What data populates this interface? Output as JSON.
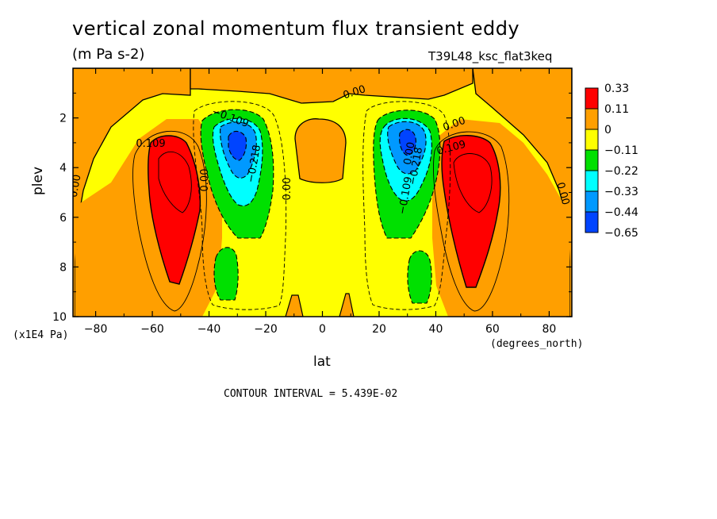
{
  "chart_data": {
    "type": "heatmap",
    "title": "vertical zonal momentum flux transient eddy",
    "subtitle": "(m Pa s-2)",
    "run_label": "T39L48_ksc_flat3keq",
    "xlabel": "lat",
    "ylabel": "plev",
    "x_unit_label": "(degrees_north)",
    "y_unit_label": "(x1E4 Pa)",
    "contour_interval_text": "CONTOUR INTERVAL = 5.439E-02",
    "xlim": [
      -88,
      88
    ],
    "ylim": [
      0,
      10
    ],
    "y_inverted": true,
    "x_ticks": [
      -80,
      -60,
      -40,
      -20,
      0,
      20,
      40,
      60,
      80
    ],
    "x_tick_labels": [
      "−80",
      "−60",
      "−40",
      "−20",
      "0",
      "20",
      "40",
      "60",
      "80"
    ],
    "y_ticks": [
      2,
      4,
      6,
      8,
      10
    ],
    "y_tick_labels": [
      "2",
      "4",
      "6",
      "8",
      "10"
    ],
    "legend": {
      "placement": "right",
      "levels": [
        "0.33",
        "0.11",
        "0",
        "−0.11",
        "−0.22",
        "−0.33",
        "−0.44",
        "−0.65"
      ],
      "colors": [
        "#ff0000",
        "#ff9f00",
        "#ffff00",
        "#00e000",
        "#00ffff",
        "#0099ff",
        "#0044ff"
      ]
    },
    "contour_labels": [
      "0.00",
      "0.00",
      "0.00",
      "0.00",
      "0.00",
      "0.00",
      "0.00",
      "0.109",
      "0.109",
      "−0.109",
      "−0.109",
      "−0.218",
      "−0.218"
    ],
    "features": [
      {
        "name": "SH positive max",
        "lat": -54,
        "plev": 4.5,
        "value": 0.33
      },
      {
        "name": "NH positive max",
        "lat": 52,
        "plev": 4.5,
        "value": 0.33
      },
      {
        "name": "SH negative min",
        "lat": -30,
        "plev": 3.2,
        "value": -0.65
      },
      {
        "name": "NH negative min",
        "lat": 30,
        "plev": 3.0,
        "value": -0.65
      },
      {
        "name": "SH lower negative",
        "lat": -33,
        "plev": 8.5,
        "value": -0.2
      },
      {
        "name": "NH lower negative",
        "lat": 33,
        "plev": 8.5,
        "value": -0.2
      }
    ]
  }
}
